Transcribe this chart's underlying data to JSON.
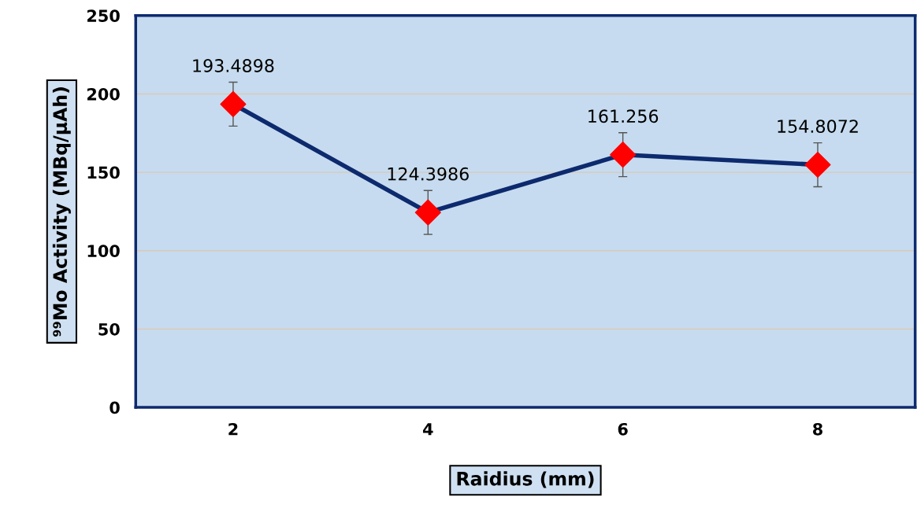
{
  "chart_data": {
    "type": "line",
    "xlabel": "Raidius (mm)",
    "ylabel": "⁹⁹Mo Activity (MBq/μAh)",
    "categories": [
      "2",
      "4",
      "6",
      "8"
    ],
    "series": [
      {
        "color": "#0d2a6e",
        "values": [
          193.4898,
          124.3986,
          161.256,
          154.8072
        ],
        "errors": [
          14,
          14,
          14,
          14
        ]
      }
    ],
    "data_labels": true,
    "marker": "diamond",
    "line_style": "solid",
    "ylim": [
      0,
      250
    ],
    "yticks": [
      0,
      50,
      100,
      150,
      200,
      250
    ],
    "grid": "y",
    "legend": false
  }
}
